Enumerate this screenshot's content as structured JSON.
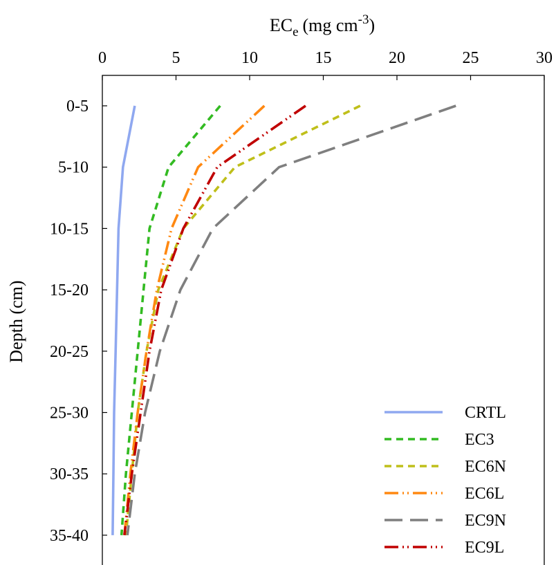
{
  "chart_data": {
    "type": "line",
    "title": "",
    "xlabel": {
      "main": "EC",
      "sub": "e",
      "unit": "(mg cm",
      "sup": "-3",
      "close": ")"
    },
    "ylabel": "Depth (cm)",
    "xlim": [
      0,
      30
    ],
    "x_ticks": [
      0,
      5,
      10,
      15,
      20,
      25,
      30
    ],
    "x_tick_labels": [
      "0",
      "5",
      "10",
      "15",
      "20",
      "25",
      "30"
    ],
    "x_axis_position": "top",
    "y_categories": [
      "0-5",
      "5-10",
      "10-15",
      "15-20",
      "20-25",
      "25-30",
      "30-35",
      "35-40"
    ],
    "y_inverted": true,
    "grid": false,
    "legend_position": "bottom-right",
    "series": [
      {
        "name": "CRTL",
        "color": "#8FA8F0",
        "dash": "solid",
        "values": [
          2.2,
          1.4,
          1.1,
          1.0,
          0.9,
          0.8,
          0.75,
          0.7
        ]
      },
      {
        "name": "EC3",
        "color": "#33BB22",
        "dash": "short-dash",
        "values": [
          8.0,
          4.5,
          3.2,
          2.8,
          2.4,
          2.0,
          1.6,
          1.3
        ]
      },
      {
        "name": "EC6N",
        "color": "#BFBF1A",
        "dash": "short-dash",
        "values": [
          17.5,
          9.0,
          5.5,
          3.8,
          3.0,
          2.4,
          2.0,
          1.6
        ]
      },
      {
        "name": "EC6L",
        "color": "#FF8811",
        "dash": "long-dash-dot-dot",
        "values": [
          11.0,
          6.5,
          4.7,
          3.7,
          3.0,
          2.4,
          1.9,
          1.5
        ]
      },
      {
        "name": "EC9N",
        "color": "#7F7F7F",
        "dash": "long-dash",
        "values": [
          24.0,
          12.0,
          7.5,
          5.3,
          3.9,
          2.9,
          2.2,
          1.7
        ]
      },
      {
        "name": "EC9L",
        "color": "#C00000",
        "dash": "long-dash-dot-dot",
        "values": [
          13.8,
          7.8,
          5.5,
          4.0,
          3.2,
          2.6,
          2.0,
          1.5
        ]
      }
    ]
  }
}
